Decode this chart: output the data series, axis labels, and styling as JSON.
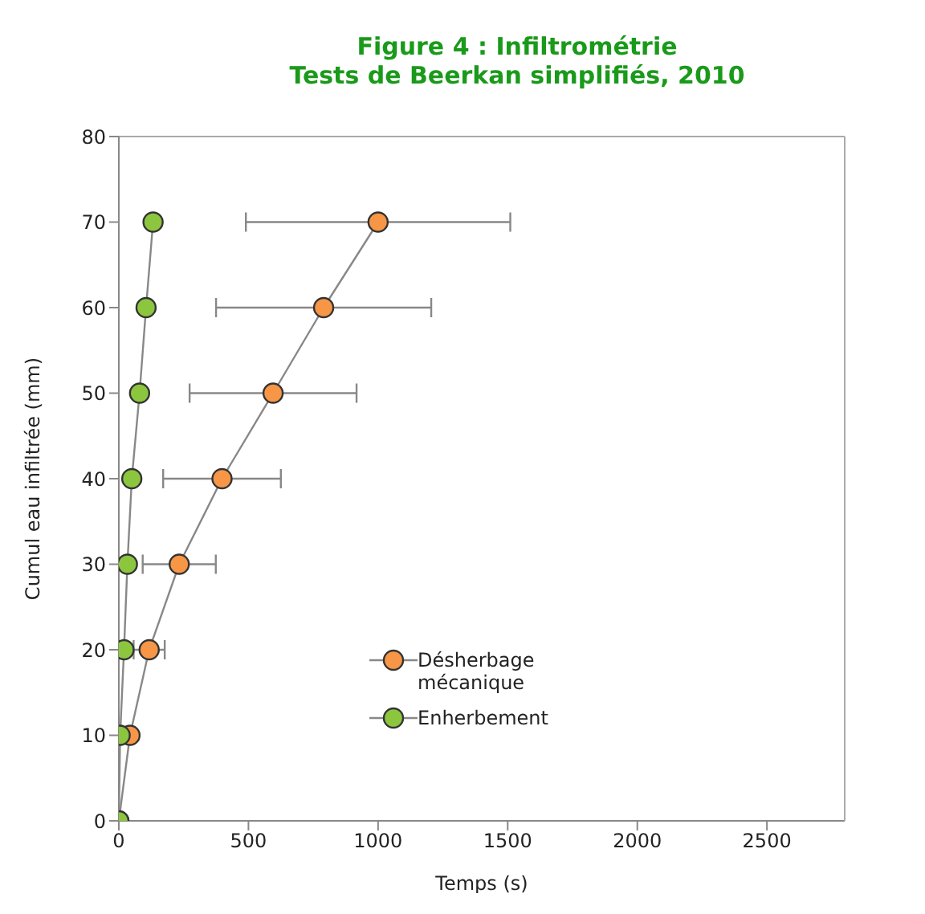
{
  "chart_data": {
    "type": "line",
    "title": "Figure 4 : Infiltrométrie",
    "subtitle": "Tests de Beerkan simplifiés, 2010",
    "xlabel": "Temps (s)",
    "ylabel": "Cumul eau infiltrée (mm)",
    "xlim": [
      0,
      2800
    ],
    "xticks": [
      0,
      500,
      1000,
      1500,
      2000,
      2500
    ],
    "ylim": [
      0,
      80
    ],
    "yticks": [
      0,
      10,
      20,
      30,
      40,
      50,
      60,
      70,
      80
    ],
    "legend": "right",
    "marker": "circle",
    "line_style": "solid",
    "series": [
      {
        "name": "Désherbage mécanique",
        "color": "#f79646",
        "x": [
          0,
          43,
          117,
          233,
          398,
          595,
          790,
          1000
        ],
        "values": [
          0,
          10,
          20,
          30,
          40,
          50,
          60,
          70
        ],
        "xerrors": [
          null,
          null,
          60,
          141,
          227,
          322,
          415,
          510
        ]
      },
      {
        "name": "Enherbement",
        "color": "#8cc63f",
        "x": [
          0,
          5,
          20,
          33,
          50,
          80,
          105,
          132
        ],
        "values": [
          0,
          10,
          20,
          30,
          40,
          50,
          60,
          70
        ]
      }
    ]
  }
}
